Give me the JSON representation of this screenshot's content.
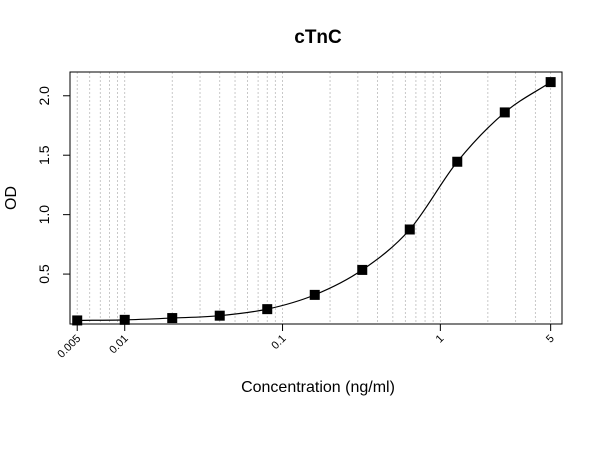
{
  "chart_data": {
    "type": "line",
    "title": "cTnC",
    "xlabel": "Concentration (ng/ml)",
    "ylabel": "OD",
    "x_scale": "log",
    "xlim": [
      0.0045,
      5.9
    ],
    "ylim": [
      0.08,
      2.2
    ],
    "x_ticks": [
      {
        "value": 0.005,
        "label": "0.005"
      },
      {
        "value": 0.01,
        "label": "0.01"
      },
      {
        "value": 0.1,
        "label": "0.1"
      },
      {
        "value": 1,
        "label": "1"
      },
      {
        "value": 5,
        "label": "5"
      }
    ],
    "y_ticks": [
      {
        "value": 0.5,
        "label": "0.5"
      },
      {
        "value": 1.0,
        "label": "1.0"
      },
      {
        "value": 1.5,
        "label": "1.5"
      },
      {
        "value": 2.0,
        "label": "2.0"
      }
    ],
    "grid": {
      "vertical": true,
      "horizontal": false,
      "style": "dotted"
    },
    "series": [
      {
        "marker": "square",
        "line": "fitted-sigmoid",
        "color": "#000000",
        "points": [
          {
            "x": 0.005,
            "y": 0.11
          },
          {
            "x": 0.01,
            "y": 0.115
          },
          {
            "x": 0.02,
            "y": 0.13
          },
          {
            "x": 0.04,
            "y": 0.15
          },
          {
            "x": 0.08,
            "y": 0.205
          },
          {
            "x": 0.16,
            "y": 0.325
          },
          {
            "x": 0.32,
            "y": 0.535
          },
          {
            "x": 0.64,
            "y": 0.875
          },
          {
            "x": 1.28,
            "y": 1.445
          },
          {
            "x": 2.56,
            "y": 1.86
          },
          {
            "x": 5,
            "y": 2.115
          }
        ]
      }
    ]
  }
}
